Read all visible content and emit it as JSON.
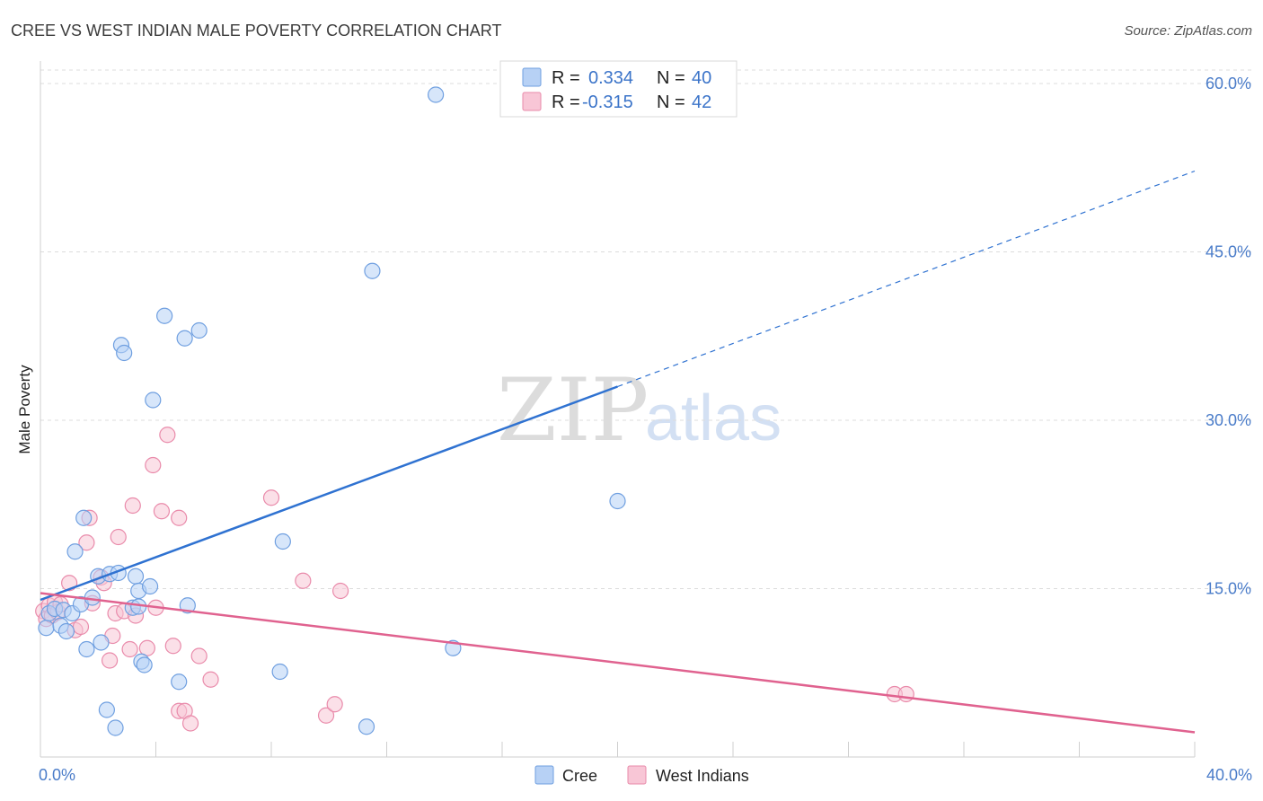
{
  "title": "CREE VS WEST INDIAN MALE POVERTY CORRELATION CHART",
  "source": "Source: ZipAtlas.com",
  "watermark": {
    "zip": "ZIP",
    "atlas": "atlas"
  },
  "colors": {
    "cree_fill": "#b7d1f5",
    "cree_stroke": "#6f9fe0",
    "cree_line": "#2f72d1",
    "wi_fill": "#f8c6d6",
    "wi_stroke": "#e98aaa",
    "wi_line": "#e0628f"
  },
  "legend": {
    "cree": {
      "r_label": "R =",
      "r_value": "0.334",
      "n_label": "N =",
      "n_value": "40"
    },
    "wi": {
      "r_label": "R =",
      "r_value": "-0.315",
      "n_label": "N =",
      "n_value": "42"
    }
  },
  "bottom_legend": {
    "cree": "Cree",
    "wi": "West Indians"
  },
  "chart_data": {
    "type": "scatter",
    "xlabel": "",
    "ylabel": "Male Poverty",
    "xlim": [
      0,
      40
    ],
    "ylim": [
      0,
      62
    ],
    "x_tick_labels": {
      "min": "0.0%",
      "max": "40.0%"
    },
    "y_ticks": [
      15,
      30,
      45,
      60
    ],
    "y_tick_labels": [
      "15.0%",
      "30.0%",
      "45.0%",
      "60.0%"
    ],
    "series": [
      {
        "name": "Cree",
        "trend": {
          "x0": 0,
          "y0": 14.0,
          "x1": 20,
          "y1": 33.0,
          "dash_to_x": 40,
          "dash_to_y": 52.2
        },
        "points": [
          [
            0.2,
            11.5
          ],
          [
            0.3,
            12.8
          ],
          [
            0.5,
            13.2
          ],
          [
            0.7,
            11.7
          ],
          [
            0.8,
            13.1
          ],
          [
            0.9,
            11.2
          ],
          [
            1.1,
            12.8
          ],
          [
            1.2,
            18.3
          ],
          [
            1.4,
            13.6
          ],
          [
            1.5,
            21.3
          ],
          [
            1.6,
            9.6
          ],
          [
            1.8,
            14.2
          ],
          [
            2.0,
            16.1
          ],
          [
            2.1,
            10.2
          ],
          [
            2.3,
            4.2
          ],
          [
            2.4,
            16.3
          ],
          [
            2.6,
            2.6
          ],
          [
            2.7,
            16.4
          ],
          [
            2.8,
            36.7
          ],
          [
            2.9,
            36.0
          ],
          [
            3.2,
            13.3
          ],
          [
            3.3,
            16.1
          ],
          [
            3.4,
            14.8
          ],
          [
            3.5,
            8.5
          ],
          [
            3.6,
            8.2
          ],
          [
            3.8,
            15.2
          ],
          [
            3.9,
            31.8
          ],
          [
            4.3,
            39.3
          ],
          [
            4.8,
            6.7
          ],
          [
            5.0,
            37.3
          ],
          [
            5.1,
            13.5
          ],
          [
            5.5,
            38.0
          ],
          [
            8.3,
            7.6
          ],
          [
            8.4,
            19.2
          ],
          [
            11.5,
            43.3
          ],
          [
            11.3,
            2.7
          ],
          [
            13.7,
            59.0
          ],
          [
            14.3,
            9.7
          ],
          [
            20.0,
            22.8
          ],
          [
            3.4,
            13.4
          ]
        ]
      },
      {
        "name": "West Indians",
        "trend": {
          "x0": 0,
          "y0": 14.6,
          "x1": 40,
          "y1": 2.2
        },
        "points": [
          [
            0.1,
            13.0
          ],
          [
            0.2,
            12.3
          ],
          [
            0.3,
            13.5
          ],
          [
            0.4,
            12.6
          ],
          [
            0.5,
            13.8
          ],
          [
            0.6,
            12.9
          ],
          [
            0.7,
            13.6
          ],
          [
            1.0,
            15.5
          ],
          [
            1.2,
            11.3
          ],
          [
            1.4,
            11.6
          ],
          [
            1.6,
            19.1
          ],
          [
            1.7,
            21.3
          ],
          [
            1.8,
            13.7
          ],
          [
            2.1,
            16.0
          ],
          [
            2.2,
            15.5
          ],
          [
            2.4,
            8.6
          ],
          [
            2.5,
            10.8
          ],
          [
            2.6,
            12.8
          ],
          [
            2.7,
            19.6
          ],
          [
            2.9,
            13.0
          ],
          [
            3.1,
            9.6
          ],
          [
            3.2,
            22.4
          ],
          [
            3.3,
            12.6
          ],
          [
            3.7,
            9.7
          ],
          [
            3.9,
            26.0
          ],
          [
            4.0,
            13.3
          ],
          [
            4.2,
            21.9
          ],
          [
            4.4,
            28.7
          ],
          [
            4.6,
            9.9
          ],
          [
            4.8,
            21.3
          ],
          [
            4.8,
            4.1
          ],
          [
            5.0,
            4.1
          ],
          [
            5.2,
            3.0
          ],
          [
            5.5,
            9.0
          ],
          [
            5.9,
            6.9
          ],
          [
            8.0,
            23.1
          ],
          [
            9.1,
            15.7
          ],
          [
            9.9,
            3.7
          ],
          [
            10.2,
            4.7
          ],
          [
            10.4,
            14.8
          ],
          [
            29.6,
            5.6
          ],
          [
            30.0,
            5.6
          ]
        ]
      }
    ]
  }
}
